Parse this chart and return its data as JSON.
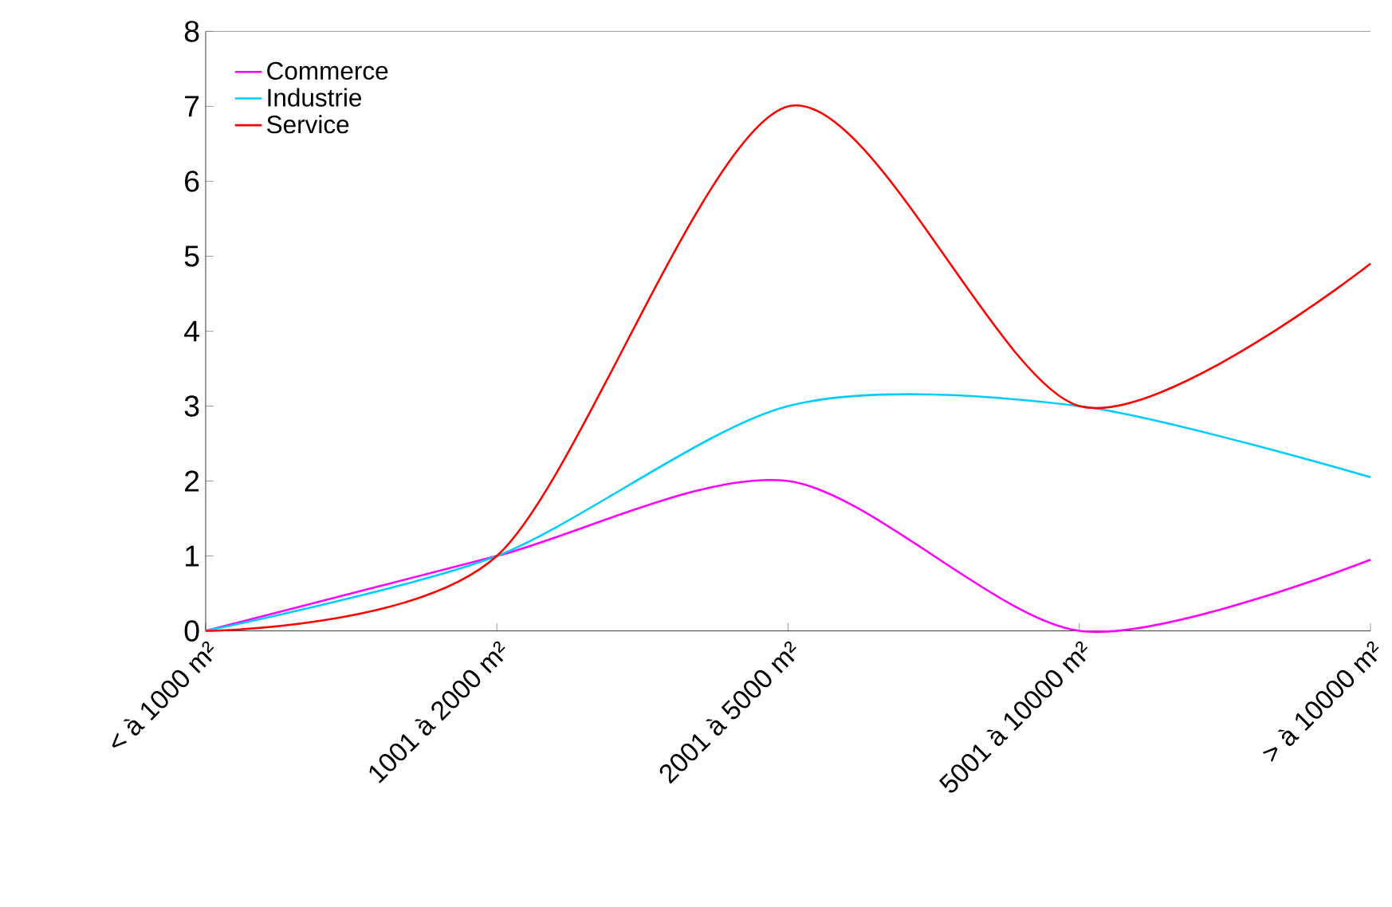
{
  "chart_data": {
    "type": "line",
    "categories": [
      "< à 1000 m²",
      "1001 à 2000 m²",
      "2001 à 5000 m²",
      "5001 à 10000 m²",
      "> à 10000 m²"
    ],
    "series": [
      {
        "name": "Commerce",
        "color": "#ff00ff",
        "values": [
          0,
          1,
          2,
          0,
          0.95
        ]
      },
      {
        "name": "Industrie",
        "color": "#00ccff",
        "values": [
          0,
          1,
          3,
          3,
          2.05
        ]
      },
      {
        "name": "Service",
        "color": "#ff0000",
        "values": [
          0,
          1,
          7,
          3,
          4.9
        ]
      }
    ],
    "ylim": [
      0,
      8
    ],
    "yticks": [
      0,
      1,
      2,
      3,
      4,
      5,
      6,
      7,
      8
    ],
    "legend": "top left",
    "grid": false,
    "marker": "none",
    "line_style": "solid"
  }
}
